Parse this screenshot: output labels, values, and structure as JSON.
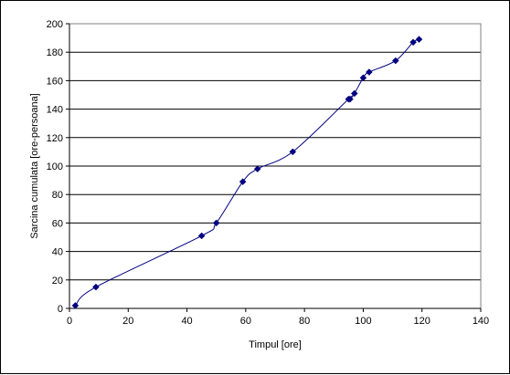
{
  "chart_data": {
    "type": "scatter",
    "title": "",
    "xlabel": "Timpul [ore]",
    "ylabel": "Sarcina cumulata [ore-persoana]",
    "xlim": [
      0,
      140
    ],
    "ylim": [
      0,
      200
    ],
    "xticks": [
      "0",
      "20",
      "40",
      "60",
      "80",
      "100",
      "120",
      "140"
    ],
    "yticks": [
      "0",
      "20",
      "40",
      "60",
      "80",
      "100",
      "120",
      "140",
      "160",
      "180",
      "200"
    ],
    "grid": "horizontal",
    "legend": "none",
    "marker": "diamond",
    "smooth_line": true,
    "series": [
      {
        "color": "#000080",
        "x": [
          2,
          9,
          45,
          50,
          59,
          64,
          76,
          95,
          95.5,
          97,
          100,
          102,
          111,
          117,
          119
        ],
        "y": [
          2,
          15,
          51,
          60,
          89,
          98,
          110,
          147,
          147,
          151,
          162,
          166,
          174,
          187,
          189
        ]
      }
    ]
  }
}
